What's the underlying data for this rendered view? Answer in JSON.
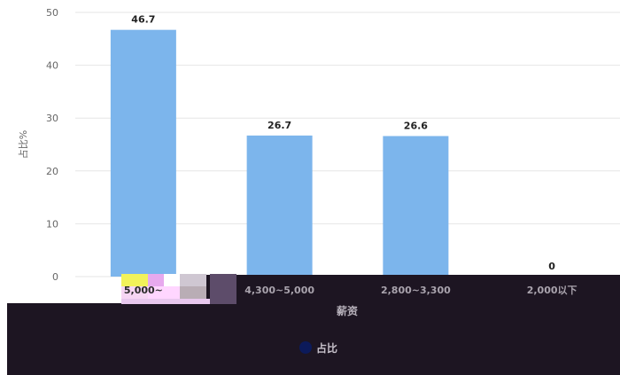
{
  "chart_data": {
    "type": "bar",
    "categories": [
      "5,000~",
      "4,300~5,000",
      "2,800~3,300",
      "2,000以下"
    ],
    "series": [
      {
        "name": "占比",
        "values": [
          46.7,
          26.7,
          26.6,
          0
        ]
      }
    ],
    "data_labels": [
      "46.7",
      "26.7",
      "26.6",
      "0"
    ],
    "title": "",
    "xlabel": "薪资",
    "ylabel": "占比%",
    "ylim": [
      0,
      50
    ],
    "yticks": [
      "0",
      "10",
      "20",
      "30",
      "40",
      "50"
    ],
    "grid": true,
    "legend_position": "bottom",
    "colors": {
      "bar": "#7cb5ec",
      "legend_marker": "#0c1a5a",
      "grid": "#e6e6e6",
      "dark_band": "#1d1522"
    }
  }
}
